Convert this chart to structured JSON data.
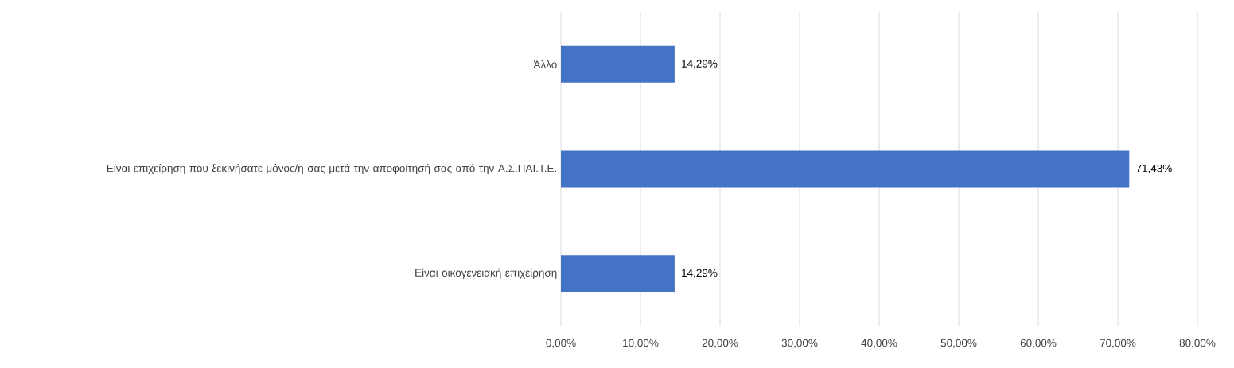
{
  "chart_data": {
    "type": "bar",
    "orientation": "horizontal",
    "categories": [
      "Άλλο",
      "Είναι επιχείρηση που ξεκινήσατε μόνος/η σας μετά την αποφοίτησή σας από την Α.Σ.ΠΑΙ.Τ.Ε.",
      "Είναι οικογενειακή επιχείρηση"
    ],
    "values": [
      14.29,
      71.43,
      14.29
    ],
    "value_labels": [
      "14,29%",
      "71,43%",
      "14,29%"
    ],
    "color": "#4472c4",
    "xlim": [
      0,
      80
    ],
    "xticks": [
      {
        "value": 0,
        "label": "0,00%"
      },
      {
        "value": 10,
        "label": "10,00%"
      },
      {
        "value": 20,
        "label": "20,00%"
      },
      {
        "value": 30,
        "label": "30,00%"
      },
      {
        "value": 40,
        "label": "40,00%"
      },
      {
        "value": 50,
        "label": "50,00%"
      },
      {
        "value": 60,
        "label": "60,00%"
      },
      {
        "value": 70,
        "label": "70,00%"
      },
      {
        "value": 80,
        "label": "80,00%"
      }
    ],
    "grid": "x"
  }
}
